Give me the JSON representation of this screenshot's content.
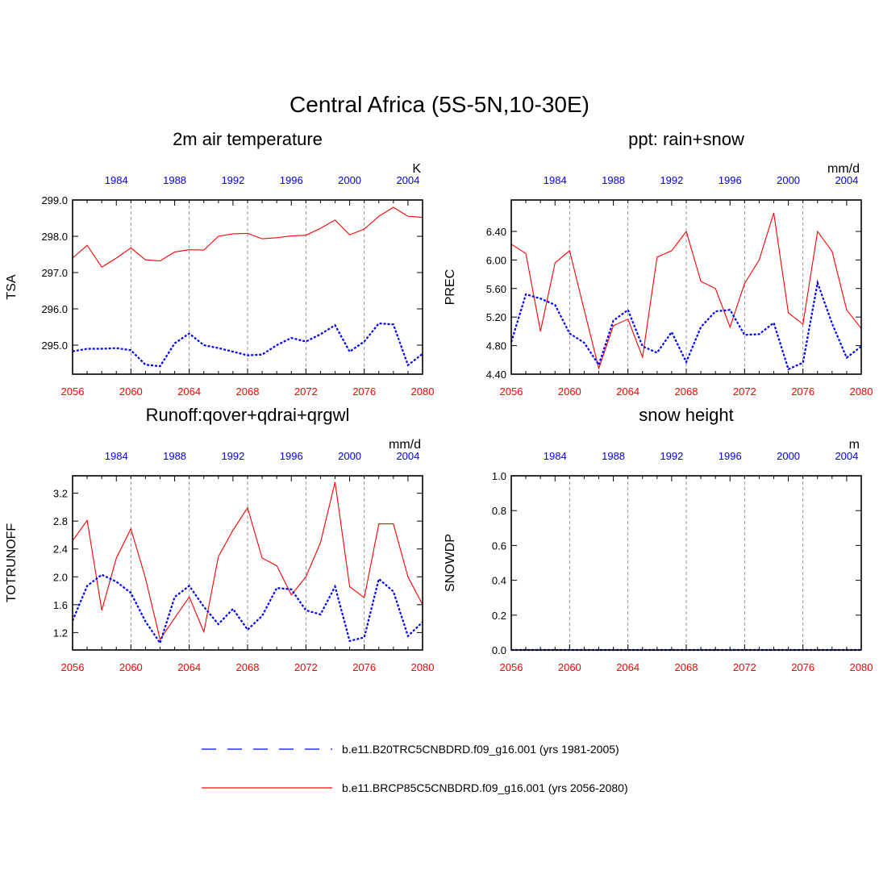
{
  "title": "Central Africa (5S-5N,10-30E)",
  "colors": {
    "future": "#ff0000",
    "historical": "#0000ff",
    "axis": "#000000",
    "grid": "#808080"
  },
  "legend": {
    "historical": "b.e11.B20TRC5CNBDRD.f09_g16.001 (yrs 1981-2005)",
    "future": "b.e11.BRCP85C5CNBDRD.f09_g16.001 (yrs 2056-2080)"
  },
  "chart_data": [
    {
      "type": "line",
      "title": "2m air temperature",
      "ylabel": "TSA",
      "units": "K",
      "ylim": [
        294.2,
        299.0
      ],
      "yticks": [
        295.0,
        296.0,
        297.0,
        298.0,
        299.0
      ],
      "ytick_labels": [
        "295.0",
        "296.0",
        "297.0",
        "298.0",
        "299.0"
      ],
      "xlim_bottom": [
        2056,
        2080
      ],
      "xticks_bottom": [
        "2056",
        "2060",
        "2064",
        "2068",
        "2072",
        "2076",
        "2080"
      ],
      "xlim_top": [
        1981,
        2005
      ],
      "xticks_top": [
        "1984",
        "1988",
        "1992",
        "1996",
        "2000",
        "2004"
      ],
      "series": [
        {
          "name": "b.e11.BRCP85C5CNBDRD.f09_g16.001 (yrs 2056-2080)",
          "key": "future",
          "x": [
            2056,
            2057,
            2058,
            2059,
            2060,
            2061,
            2062,
            2063,
            2064,
            2065,
            2066,
            2067,
            2068,
            2069,
            2070,
            2071,
            2072,
            2073,
            2074,
            2075,
            2076,
            2077,
            2078,
            2079,
            2080
          ],
          "values": [
            297.4,
            297.75,
            297.15,
            297.4,
            297.68,
            297.35,
            297.32,
            297.57,
            297.63,
            297.62,
            298.0,
            298.07,
            298.08,
            297.93,
            297.96,
            298.01,
            298.03,
            298.22,
            298.45,
            298.04,
            298.2,
            298.55,
            298.8,
            298.55,
            298.52
          ]
        },
        {
          "name": "b.e11.B20TRC5CNBDRD.f09_g16.001 (yrs 1981-2005)",
          "key": "historical",
          "x": [
            2056,
            2057,
            2058,
            2059,
            2060,
            2061,
            2062,
            2063,
            2064,
            2065,
            2066,
            2067,
            2068,
            2069,
            2070,
            2071,
            2072,
            2073,
            2074,
            2075,
            2076,
            2077,
            2078,
            2079,
            2080
          ],
          "values": [
            294.83,
            294.9,
            294.9,
            294.92,
            294.86,
            294.46,
            294.42,
            295.05,
            295.32,
            295.0,
            294.92,
            294.82,
            294.72,
            294.74,
            295.0,
            295.2,
            295.1,
            295.3,
            295.55,
            294.82,
            295.1,
            295.6,
            295.57,
            294.45,
            294.76
          ]
        }
      ]
    },
    {
      "type": "line",
      "title": "ppt: rain+snow",
      "ylabel": "PREC",
      "units": "mm/d",
      "ylim": [
        4.4,
        6.84
      ],
      "yticks": [
        4.4,
        4.8,
        5.2,
        5.6,
        6.0,
        6.4
      ],
      "ytick_labels": [
        "4.40",
        "4.80",
        "5.20",
        "5.60",
        "6.00",
        "6.40"
      ],
      "xlim_bottom": [
        2056,
        2080
      ],
      "xticks_bottom": [
        "2056",
        "2060",
        "2064",
        "2068",
        "2072",
        "2076",
        "2080"
      ],
      "xlim_top": [
        1981,
        2005
      ],
      "xticks_top": [
        "1984",
        "1988",
        "1992",
        "1996",
        "2000",
        "2004"
      ],
      "series": [
        {
          "name": "b.e11.BRCP85C5CNBDRD.f09_g16.001 (yrs 2056-2080)",
          "key": "future",
          "x": [
            2056,
            2057,
            2058,
            2059,
            2060,
            2061,
            2062,
            2063,
            2064,
            2065,
            2066,
            2067,
            2068,
            2069,
            2070,
            2071,
            2072,
            2073,
            2074,
            2075,
            2076,
            2077,
            2078,
            2079,
            2080
          ],
          "values": [
            6.22,
            6.09,
            5.0,
            5.96,
            6.13,
            5.3,
            4.48,
            5.08,
            5.17,
            4.64,
            6.04,
            6.13,
            6.4,
            5.7,
            5.6,
            5.06,
            5.67,
            6.0,
            6.66,
            5.26,
            5.1,
            6.4,
            6.12,
            5.3,
            5.04
          ]
        },
        {
          "name": "b.e11.B20TRC5CNBDRD.f09_g16.001 (yrs 1981-2005)",
          "key": "historical",
          "x": [
            2056,
            2057,
            2058,
            2059,
            2060,
            2061,
            2062,
            2063,
            2064,
            2065,
            2066,
            2067,
            2068,
            2069,
            2070,
            2071,
            2072,
            2073,
            2074,
            2075,
            2076,
            2077,
            2078,
            2079,
            2080
          ],
          "values": [
            4.85,
            5.52,
            5.46,
            5.37,
            4.97,
            4.84,
            4.53,
            5.15,
            5.3,
            4.79,
            4.7,
            4.99,
            4.57,
            5.06,
            5.28,
            5.3,
            4.95,
            4.96,
            5.12,
            4.47,
            4.56,
            5.68,
            5.11,
            4.63,
            4.79
          ]
        }
      ]
    },
    {
      "type": "line",
      "title": "Runoff:qover+qdrai+qrgwl",
      "ylabel": "TOTRUNOFF",
      "units": "mm/d",
      "ylim": [
        0.95,
        3.45
      ],
      "yticks": [
        1.2,
        1.6,
        2.0,
        2.4,
        2.8,
        3.2
      ],
      "ytick_labels": [
        "1.2",
        "1.6",
        "2.0",
        "2.4",
        "2.8",
        "3.2"
      ],
      "xlim_bottom": [
        2056,
        2080
      ],
      "xticks_bottom": [
        "2056",
        "2060",
        "2064",
        "2068",
        "2072",
        "2076",
        "2080"
      ],
      "xlim_top": [
        1981,
        2005
      ],
      "xticks_top": [
        "1984",
        "1988",
        "1992",
        "1996",
        "2000",
        "2004"
      ],
      "series": [
        {
          "name": "b.e11.BRCP85C5CNBDRD.f09_g16.001 (yrs 2056-2080)",
          "key": "future",
          "x": [
            2056,
            2057,
            2058,
            2059,
            2060,
            2061,
            2062,
            2063,
            2064,
            2065,
            2066,
            2067,
            2068,
            2069,
            2070,
            2071,
            2072,
            2073,
            2074,
            2075,
            2076,
            2077,
            2078,
            2079,
            2080
          ],
          "values": [
            2.52,
            2.81,
            1.52,
            2.27,
            2.69,
            1.98,
            1.1,
            1.41,
            1.71,
            1.21,
            2.29,
            2.67,
            2.99,
            2.27,
            2.16,
            1.74,
            2.0,
            2.49,
            3.36,
            1.86,
            1.7,
            2.76,
            2.76,
            2.0,
            1.6
          ]
        },
        {
          "name": "b.e11.B20TRC5CNBDRD.f09_g16.001 (yrs 1981-2005)",
          "key": "historical",
          "x": [
            2056,
            2057,
            2058,
            2059,
            2060,
            2061,
            2062,
            2063,
            2064,
            2065,
            2066,
            2067,
            2068,
            2069,
            2070,
            2071,
            2072,
            2073,
            2074,
            2075,
            2076,
            2077,
            2078,
            2079,
            2080
          ],
          "values": [
            1.37,
            1.87,
            2.03,
            1.93,
            1.77,
            1.36,
            1.05,
            1.71,
            1.87,
            1.57,
            1.32,
            1.54,
            1.24,
            1.44,
            1.84,
            1.82,
            1.52,
            1.46,
            1.86,
            1.08,
            1.13,
            1.97,
            1.79,
            1.15,
            1.35
          ]
        }
      ]
    },
    {
      "type": "line",
      "title": "snow height",
      "ylabel": "SNOWDP",
      "units": "m",
      "ylim": [
        0.0,
        1.0
      ],
      "yticks": [
        0.0,
        0.2,
        0.4,
        0.6,
        0.8,
        1.0
      ],
      "ytick_labels": [
        "0.0",
        "0.2",
        "0.4",
        "0.6",
        "0.8",
        "1.0"
      ],
      "xlim_bottom": [
        2056,
        2080
      ],
      "xticks_bottom": [
        "2056",
        "2060",
        "2064",
        "2068",
        "2072",
        "2076",
        "2080"
      ],
      "xlim_top": [
        1981,
        2005
      ],
      "xticks_top": [
        "1984",
        "1988",
        "1992",
        "1996",
        "2000",
        "2004"
      ],
      "series": [
        {
          "name": "b.e11.BRCP85C5CNBDRD.f09_g16.001 (yrs 2056-2080)",
          "key": "future",
          "x": [
            2056,
            2057,
            2058,
            2059,
            2060,
            2061,
            2062,
            2063,
            2064,
            2065,
            2066,
            2067,
            2068,
            2069,
            2070,
            2071,
            2072,
            2073,
            2074,
            2075,
            2076,
            2077,
            2078,
            2079,
            2080
          ],
          "values": [
            0,
            0,
            0,
            0,
            0,
            0,
            0,
            0,
            0,
            0,
            0,
            0,
            0,
            0,
            0,
            0,
            0,
            0,
            0,
            0,
            0,
            0,
            0,
            0,
            0
          ]
        },
        {
          "name": "b.e11.B20TRC5CNBDRD.f09_g16.001 (yrs 1981-2005)",
          "key": "historical",
          "x": [
            2056,
            2057,
            2058,
            2059,
            2060,
            2061,
            2062,
            2063,
            2064,
            2065,
            2066,
            2067,
            2068,
            2069,
            2070,
            2071,
            2072,
            2073,
            2074,
            2075,
            2076,
            2077,
            2078,
            2079,
            2080
          ],
          "values": [
            0,
            0,
            0,
            0,
            0,
            0,
            0,
            0,
            0,
            0,
            0,
            0,
            0,
            0,
            0,
            0,
            0,
            0,
            0,
            0,
            0,
            0,
            0,
            0,
            0
          ]
        }
      ]
    }
  ]
}
